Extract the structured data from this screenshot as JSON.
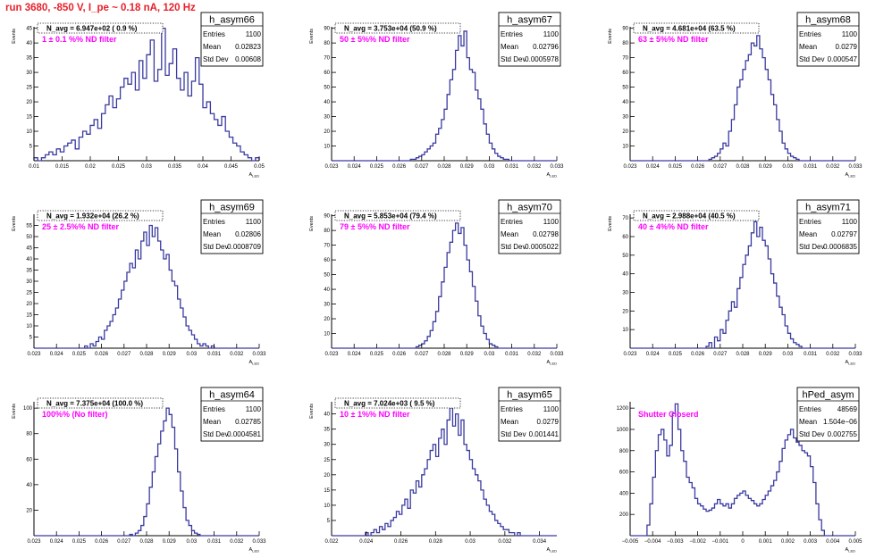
{
  "run_title": "run 3680,  -850 V, I_pe ~ 0.18 nA, 120 Hz",
  "colors": {
    "hist": "#3a3aa0",
    "filter_text": "#ff00ff",
    "title": "#e8202a"
  },
  "stats_labels": {
    "entries": "Entries",
    "mean": "Mean",
    "std": "Std Dev"
  },
  "chart_data": [
    {
      "type": "bar",
      "name": "h_asym66",
      "navg": "N_avg = 6.947e+02 ( 0.9 %)",
      "filter": "1 ± 0.1 %% ND filter",
      "stats": {
        "entries": "1100",
        "mean": "0.02823",
        "std": "0.00608"
      },
      "ylabel": "Events",
      "xlabel": "A_LED",
      "xlim": [
        0.01,
        0.05
      ],
      "ylim": [
        0,
        45.5
      ],
      "xticks": [
        0.01,
        0.015,
        0.02,
        0.025,
        0.03,
        0.035,
        0.04,
        0.045,
        0.05
      ],
      "xtick_labels": [
        "0.01",
        "0.015",
        "0.02",
        "0.025",
        "0.03",
        "0.035",
        "0.04",
        "0.045",
        "0.05"
      ],
      "yticks": [
        5,
        10,
        15,
        20,
        25,
        30,
        35,
        40,
        45
      ],
      "values": [
        1,
        0,
        1,
        2,
        3,
        2,
        4,
        3,
        5,
        6,
        7,
        4,
        8,
        10,
        9,
        12,
        14,
        11,
        16,
        19,
        22,
        18,
        21,
        25,
        28,
        26,
        30,
        24,
        34,
        28,
        36,
        41,
        27,
        31,
        45,
        29,
        33,
        38,
        28,
        24,
        30,
        22,
        27,
        35,
        26,
        18,
        20,
        16,
        14,
        12,
        15,
        10,
        8,
        6,
        5,
        3,
        2,
        1,
        0,
        1
      ]
    },
    {
      "type": "bar",
      "name": "h_asym67",
      "navg": "N_avg = 3.753e+04 (50.9 %)",
      "filter": "50 ± 5%% ND filter",
      "stats": {
        "entries": "1100",
        "mean": "0.02796",
        "std": "0.0005978"
      },
      "ylabel": "Events",
      "xlabel": "A_LED",
      "xlim": [
        0.023,
        0.033
      ],
      "ylim": [
        0,
        91
      ],
      "xticks": [
        0.023,
        0.024,
        0.025,
        0.026,
        0.027,
        0.028,
        0.029,
        0.03,
        0.031,
        0.032,
        0.033
      ],
      "xtick_labels": [
        "0.023",
        "0.024",
        "0.025",
        "0.026",
        "0.027",
        "0.028",
        "0.029",
        "0.03",
        "0.031",
        "0.032",
        "0.033"
      ],
      "yticks": [
        10,
        20,
        30,
        40,
        50,
        60,
        70,
        80,
        90
      ],
      "values": [
        0,
        0,
        0,
        0,
        0,
        0,
        0,
        0,
        0,
        0,
        0,
        0,
        0,
        0,
        0,
        0,
        0,
        0,
        0,
        0,
        0,
        0,
        0,
        0,
        0,
        0,
        0,
        0,
        1,
        1,
        2,
        3,
        4,
        6,
        8,
        10,
        12,
        18,
        22,
        28,
        35,
        45,
        55,
        62,
        75,
        85,
        78,
        88,
        70,
        62,
        60,
        48,
        42,
        35,
        25,
        18,
        12,
        8,
        5,
        3,
        2,
        1,
        1,
        0,
        0,
        0,
        0,
        0,
        0,
        0,
        0,
        0,
        0,
        0,
        0,
        0,
        0,
        0,
        0,
        0
      ]
    },
    {
      "type": "bar",
      "name": "h_asym68",
      "navg": "N_avg = 4.681e+04 (63.5 %)",
      "filter": "63 ± 5%% ND filter",
      "stats": {
        "entries": "1100",
        "mean": "0.0279",
        "std": "0.000547"
      },
      "ylabel": "Events",
      "xlabel": "A_LED",
      "xlim": [
        0.023,
        0.033
      ],
      "ylim": [
        0,
        91
      ],
      "xticks": [
        0.023,
        0.024,
        0.025,
        0.026,
        0.027,
        0.028,
        0.029,
        0.03,
        0.031,
        0.032,
        0.033
      ],
      "xtick_labels": [
        "0.023",
        "0.024",
        "0.025",
        "0.026",
        "0.027",
        "0.028",
        "0.029",
        "0.03",
        "0.031",
        "0.032",
        "0.033"
      ],
      "yticks": [
        10,
        20,
        30,
        40,
        50,
        60,
        70,
        80,
        90
      ],
      "values": [
        0,
        0,
        0,
        0,
        0,
        0,
        0,
        0,
        0,
        0,
        0,
        0,
        0,
        0,
        0,
        0,
        0,
        0,
        0,
        0,
        0,
        0,
        0,
        0,
        0,
        0,
        0,
        0,
        1,
        2,
        3,
        5,
        8,
        12,
        10,
        20,
        28,
        38,
        50,
        55,
        62,
        68,
        72,
        80,
        78,
        85,
        76,
        70,
        62,
        55,
        45,
        38,
        28,
        20,
        12,
        8,
        5,
        3,
        2,
        1,
        0,
        0,
        0,
        0,
        0,
        0,
        0,
        0,
        0,
        0,
        0,
        0,
        0,
        0,
        0,
        0,
        0,
        0,
        0,
        0
      ]
    },
    {
      "type": "bar",
      "name": "h_asym69",
      "navg": "N_avg = 1.932e+04 (26.2 %)",
      "filter": "25 ± 2.5%% ND filter",
      "stats": {
        "entries": "1100",
        "mean": "0.02806",
        "std": "0.0008709"
      },
      "ylabel": "Events",
      "xlabel": "A_LED",
      "xlim": [
        0.023,
        0.033
      ],
      "ylim": [
        0,
        60
      ],
      "xticks": [
        0.023,
        0.024,
        0.025,
        0.026,
        0.027,
        0.028,
        0.029,
        0.03,
        0.031,
        0.032,
        0.033
      ],
      "xtick_labels": [
        "0.023",
        "0.024",
        "0.025",
        "0.026",
        "0.027",
        "0.028",
        "0.029",
        "0.03",
        "0.031",
        "0.032",
        "0.033"
      ],
      "yticks": [
        5,
        10,
        15,
        20,
        25,
        30,
        35,
        40,
        45,
        50,
        55
      ],
      "values": [
        0,
        0,
        0,
        0,
        0,
        0,
        0,
        0,
        0,
        0,
        0,
        0,
        0,
        0,
        0,
        0,
        0,
        0,
        1,
        0,
        2,
        1,
        3,
        5,
        4,
        8,
        10,
        12,
        15,
        18,
        22,
        26,
        30,
        34,
        38,
        36,
        44,
        40,
        48,
        52,
        46,
        55,
        50,
        54,
        48,
        44,
        40,
        42,
        35,
        30,
        28,
        22,
        18,
        14,
        10,
        8,
        6,
        4,
        2,
        1,
        2,
        1,
        0,
        1,
        0,
        0,
        0,
        0,
        0,
        0,
        0,
        0,
        0,
        0,
        0,
        0,
        0,
        0,
        0,
        0
      ]
    },
    {
      "type": "bar",
      "name": "h_asym70",
      "navg": "N_avg = 5.853e+04 (79.4 %)",
      "filter": "79 ± 5%% ND filter",
      "stats": {
        "entries": "1100",
        "mean": "0.02798",
        "std": "0.0005022"
      },
      "ylabel": "Events",
      "xlabel": "A_LED",
      "xlim": [
        0.023,
        0.033
      ],
      "ylim": [
        0,
        91
      ],
      "xticks": [
        0.023,
        0.024,
        0.025,
        0.026,
        0.027,
        0.028,
        0.029,
        0.03,
        0.031,
        0.032,
        0.033
      ],
      "xtick_labels": [
        "0.023",
        "0.024",
        "0.025",
        "0.026",
        "0.027",
        "0.028",
        "0.029",
        "0.03",
        "0.031",
        "0.032",
        "0.033"
      ],
      "yticks": [
        10,
        20,
        30,
        40,
        50,
        60,
        70,
        80,
        90
      ],
      "values": [
        0,
        0,
        0,
        0,
        0,
        0,
        0,
        0,
        0,
        0,
        0,
        0,
        0,
        0,
        0,
        0,
        0,
        0,
        0,
        0,
        0,
        0,
        0,
        0,
        0,
        0,
        0,
        0,
        0,
        0,
        1,
        2,
        3,
        5,
        8,
        12,
        18,
        25,
        35,
        45,
        55,
        65,
        72,
        80,
        85,
        78,
        82,
        70,
        60,
        52,
        42,
        32,
        22,
        15,
        10,
        6,
        3,
        2,
        1,
        0,
        0,
        0,
        0,
        0,
        0,
        0,
        0,
        0,
        0,
        0,
        0,
        0,
        0,
        0,
        0,
        0,
        0,
        0,
        0,
        0
      ]
    },
    {
      "type": "bar",
      "name": "h_asym71",
      "navg": "N_avg = 2.988e+04 (40.5 %)",
      "filter": "40 ± 4%% ND filter",
      "stats": {
        "entries": "1100",
        "mean": "0.02797",
        "std": "0.0006835"
      },
      "ylabel": "Events",
      "xlabel": "A_LED",
      "xlim": [
        0.023,
        0.033
      ],
      "ylim": [
        0,
        72
      ],
      "xticks": [
        0.023,
        0.024,
        0.025,
        0.026,
        0.027,
        0.028,
        0.029,
        0.03,
        0.031,
        0.032,
        0.033
      ],
      "xtick_labels": [
        "0.023",
        "0.024",
        "0.025",
        "0.026",
        "0.027",
        "0.028",
        "0.029",
        "0.03",
        "0.031",
        "0.032",
        "0.033"
      ],
      "yticks": [
        10,
        20,
        30,
        40,
        50,
        60,
        70
      ],
      "values": [
        0,
        0,
        0,
        0,
        0,
        0,
        0,
        0,
        0,
        0,
        0,
        0,
        0,
        0,
        0,
        0,
        0,
        0,
        0,
        0,
        0,
        0,
        0,
        0,
        0,
        0,
        0,
        1,
        3,
        0,
        6,
        4,
        10,
        8,
        15,
        20,
        25,
        22,
        32,
        38,
        45,
        50,
        55,
        62,
        68,
        60,
        65,
        58,
        55,
        48,
        40,
        35,
        28,
        22,
        18,
        12,
        8,
        5,
        3,
        2,
        1,
        0,
        0,
        0,
        0,
        0,
        0,
        0,
        0,
        0,
        0,
        0,
        0,
        0,
        0,
        0,
        0,
        0,
        0,
        0
      ]
    },
    {
      "type": "bar",
      "name": "h_asym64",
      "navg": "N_avg = 7.375e+04 (100.0 %)",
      "filter": "100%% (No filter)",
      "stats": {
        "entries": "1100",
        "mean": "0.02785",
        "std": "0.0004581"
      },
      "ylabel": "Events",
      "xlabel": "A_LED",
      "xlim": [
        0.023,
        0.033
      ],
      "ylim": [
        0,
        105
      ],
      "xticks": [
        0.023,
        0.024,
        0.025,
        0.026,
        0.027,
        0.028,
        0.029,
        0.03,
        0.031,
        0.032,
        0.033
      ],
      "xtick_labels": [
        "0.023",
        "0.024",
        "0.025",
        "0.026",
        "0.027",
        "0.028",
        "0.029",
        "0.03",
        "0.031",
        "0.032",
        "0.033"
      ],
      "yticks": [
        20,
        40,
        60,
        80,
        100
      ],
      "values": [
        0,
        0,
        0,
        0,
        0,
        0,
        0,
        0,
        0,
        0,
        0,
        0,
        0,
        0,
        0,
        0,
        0,
        0,
        0,
        0,
        0,
        0,
        0,
        0,
        0,
        0,
        0,
        0,
        0,
        0,
        0,
        0,
        0,
        0,
        1,
        0,
        2,
        4,
        8,
        15,
        25,
        38,
        50,
        62,
        72,
        82,
        90,
        100,
        95,
        85,
        68,
        50,
        35,
        22,
        12,
        8,
        4,
        2,
        1,
        0,
        0,
        0,
        0,
        0,
        0,
        0,
        0,
        0,
        0,
        0,
        0,
        0,
        0,
        0,
        0,
        0,
        0,
        0,
        0,
        0
      ]
    },
    {
      "type": "bar",
      "name": "h_asym65",
      "navg": "N_avg = 7.024e+03 ( 9.5 %)",
      "filter": "10 ± 1%% ND filter",
      "stats": {
        "entries": "1100",
        "mean": "0.0279",
        "std": "0.001441"
      },
      "ylabel": "Events",
      "xlabel": "A_LED",
      "xlim": [
        0.022,
        0.035
      ],
      "ylim": [
        0,
        44
      ],
      "xticks": [
        0.022,
        0.024,
        0.026,
        0.028,
        0.03,
        0.032,
        0.034
      ],
      "xtick_labels": [
        "0.022",
        "0.024",
        "0.026",
        "0.028",
        "0.03",
        "0.032",
        "0.034"
      ],
      "yticks": [
        5,
        10,
        15,
        20,
        25,
        30,
        35,
        40
      ],
      "values": [
        0,
        0,
        0,
        0,
        0,
        0,
        0,
        0,
        0,
        0,
        0,
        0,
        1,
        0,
        1,
        2,
        1,
        3,
        2,
        4,
        3,
        5,
        6,
        8,
        7,
        10,
        12,
        9,
        15,
        14,
        18,
        16,
        20,
        22,
        25,
        28,
        30,
        26,
        32,
        35,
        30,
        38,
        42,
        36,
        40,
        33,
        38,
        30,
        28,
        25,
        22,
        20,
        18,
        15,
        12,
        10,
        8,
        7,
        5,
        4,
        3,
        2,
        2,
        1,
        1,
        0,
        1,
        0,
        0,
        0,
        0,
        0,
        0,
        0,
        0,
        0,
        0,
        0,
        0,
        0
      ]
    },
    {
      "type": "bar",
      "name": "hPed_asym",
      "navg": "",
      "filter": "Shutter Closerd",
      "stats": {
        "entries": "48569",
        "mean": "1.504e−06",
        "std": "0.002755"
      },
      "ylabel": "",
      "xlabel": "A_LED",
      "xlim": [
        -0.005,
        0.005
      ],
      "ylim": [
        0,
        1260
      ],
      "xticks": [
        -0.005,
        -0.004,
        -0.003,
        -0.002,
        -0.001,
        0,
        0.001,
        0.002,
        0.003,
        0.004,
        0.005
      ],
      "xtick_labels": [
        "−0.005",
        "−0.004",
        "−0.003",
        "−0.002",
        "−0.001",
        "0",
        "0.001",
        "0.002",
        "0.003",
        "0.004",
        "0.005"
      ],
      "yticks": [
        200,
        400,
        600,
        800,
        1000,
        1200
      ],
      "values": [
        0,
        0,
        0,
        0,
        0,
        0,
        100,
        300,
        550,
        800,
        950,
        1000,
        900,
        750,
        850,
        1150,
        1240,
        1000,
        800,
        700,
        550,
        500,
        450,
        350,
        300,
        280,
        250,
        230,
        240,
        260,
        300,
        340,
        300,
        280,
        300,
        260,
        300,
        350,
        380,
        400,
        420,
        380,
        350,
        330,
        300,
        280,
        300,
        340,
        380,
        420,
        470,
        520,
        600,
        700,
        820,
        900,
        950,
        1000,
        920,
        880,
        850,
        800,
        780,
        750,
        650,
        500,
        300,
        150,
        50,
        0,
        0,
        0,
        0,
        0,
        0,
        0,
        0,
        0,
        0,
        0
      ]
    }
  ]
}
